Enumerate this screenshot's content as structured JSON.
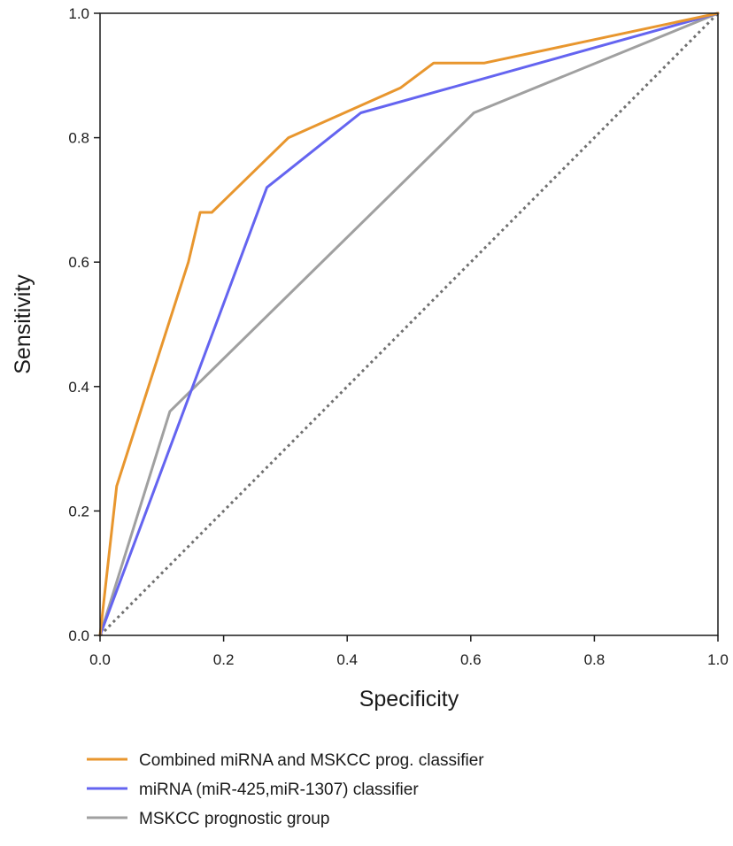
{
  "chart_data": {
    "type": "line",
    "title": "",
    "xlabel": "Specificity",
    "ylabel": "Sensitivity",
    "xlim": [
      0.0,
      1.0
    ],
    "ylim": [
      0.0,
      1.0
    ],
    "x_ticks": [
      "0.0",
      "0.2",
      "0.4",
      "0.6",
      "0.8",
      "1.0"
    ],
    "y_ticks": [
      "0.0",
      "0.2",
      "0.4",
      "0.6",
      "0.8",
      "1.0"
    ],
    "grid": false,
    "legend_position": "bottom",
    "series": [
      {
        "name": "Combined miRNA and MSKCC prog. classifier",
        "color": "#E8962E",
        "points": [
          [
            0.0,
            0.0
          ],
          [
            0.027,
            0.24
          ],
          [
            0.143,
            0.6
          ],
          [
            0.162,
            0.68
          ],
          [
            0.181,
            0.68
          ],
          [
            0.305,
            0.8
          ],
          [
            0.486,
            0.88
          ],
          [
            0.54,
            0.92
          ],
          [
            0.622,
            0.92
          ],
          [
            1.0,
            1.0
          ]
        ]
      },
      {
        "name": "miRNA (miR-425,miR-1307) classifier",
        "color": "#6464F0",
        "points": [
          [
            0.0,
            0.0
          ],
          [
            0.27,
            0.72
          ],
          [
            0.422,
            0.84
          ],
          [
            1.0,
            1.0
          ]
        ]
      },
      {
        "name": "MSKCC prognostic group",
        "color": "#A0A0A0",
        "points": [
          [
            0.0,
            0.0
          ],
          [
            0.113,
            0.36
          ],
          [
            0.605,
            0.84
          ],
          [
            1.0,
            1.0
          ]
        ]
      }
    ],
    "reference_line": {
      "color": "#707070",
      "style": "dotted",
      "points": [
        [
          0.0,
          0.0
        ],
        [
          1.0,
          1.0
        ]
      ]
    }
  }
}
